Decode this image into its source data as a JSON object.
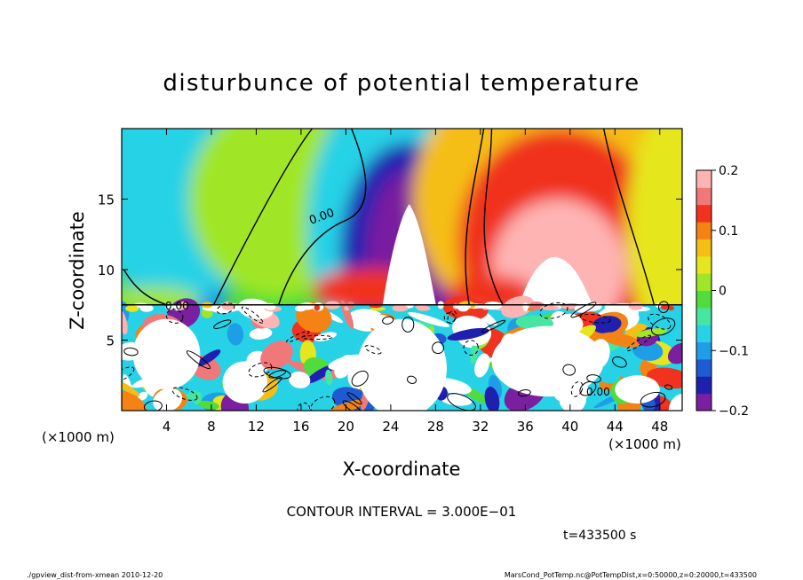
{
  "chart_data": {
    "type": "heatmap",
    "title": "disturbunce of potential temperature",
    "xlabel": "X-coordinate",
    "ylabel": "Z-coordinate",
    "x_unit_left": "(×1000 m)",
    "x_unit_right": "(×1000 m)",
    "xlim": [
      0,
      50
    ],
    "ylim": [
      0,
      20
    ],
    "x_ticks": [
      "4",
      "8",
      "12",
      "16",
      "20",
      "24",
      "28",
      "32",
      "36",
      "40",
      "44",
      "48"
    ],
    "y_ticks": [
      "5",
      "10",
      "15"
    ],
    "colorbar": {
      "vmin": -0.2,
      "vmax": 0.2,
      "ticks": [
        "0.2",
        "0.1",
        "0",
        "−0.1",
        "−0.2"
      ]
    },
    "contour_label": "0.00",
    "contour_interval_text": "CONTOUR INTERVAL = 3.000E−01",
    "time_text": "t=433500 s",
    "features": [
      {
        "x": 25.5,
        "z": 12,
        "value": -0.25
      },
      {
        "x": 38.5,
        "z": 9,
        "value": 0.25
      },
      {
        "x": 5,
        "z": 9,
        "value": -0.1
      }
    ]
  },
  "footer": {
    "left": "./gpview_dist-from-xmean  2010-12-20",
    "right": "MarsCond_PotTemp.nc@PotTempDist,x=0:50000,z=0:20000,t=433500"
  },
  "colors": {
    "colormap": [
      "#7a1fa0",
      "#2020b0",
      "#1e5ad2",
      "#1e9ee6",
      "#28d2e6",
      "#46e6a0",
      "#50dc3c",
      "#a0e628",
      "#e6e61e",
      "#f5be14",
      "#f58214",
      "#f0321e",
      "#f07878",
      "#ffb4b4"
    ]
  }
}
